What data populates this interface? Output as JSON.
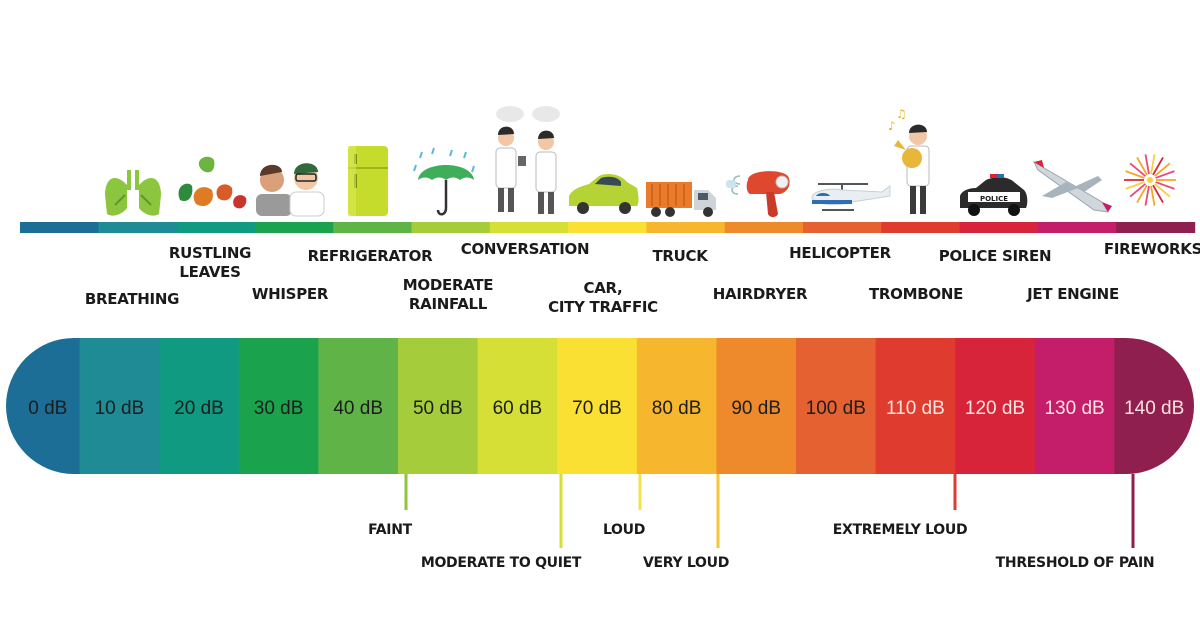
{
  "scale": {
    "unit": "dB",
    "segments": [
      {
        "value": 0,
        "label": "0 dB",
        "color": "#1c6e96",
        "text_color": "#1d1d1d"
      },
      {
        "value": 10,
        "label": "10 dB",
        "color": "#1f8b95",
        "text_color": "#1d1d1d"
      },
      {
        "value": 20,
        "label": "20 dB",
        "color": "#109a82",
        "text_color": "#1d1d1d"
      },
      {
        "value": 30,
        "label": "30 dB",
        "color": "#1ba24c",
        "text_color": "#1d1d1d"
      },
      {
        "value": 40,
        "label": "40 dB",
        "color": "#60b447",
        "text_color": "#1d1d1d"
      },
      {
        "value": 50,
        "label": "50 dB",
        "color": "#a5cd3b",
        "text_color": "#1d1d1d"
      },
      {
        "value": 60,
        "label": "60 dB",
        "color": "#d5df35",
        "text_color": "#1d1d1d"
      },
      {
        "value": 70,
        "label": "70 dB",
        "color": "#fbe034",
        "text_color": "#1d1d1d"
      },
      {
        "value": 80,
        "label": "80 dB",
        "color": "#f6b72e",
        "text_color": "#1d1d1d"
      },
      {
        "value": 90,
        "label": "90 dB",
        "color": "#ee8a2c",
        "text_color": "#1d1d1d"
      },
      {
        "value": 100,
        "label": "100 dB",
        "color": "#e56132",
        "text_color": "#1d1d1d"
      },
      {
        "value": 110,
        "label": "110 dB",
        "color": "#e03b2f",
        "text_color": "#fbe3df"
      },
      {
        "value": 120,
        "label": "120 dB",
        "color": "#d8243a",
        "text_color": "#fbe3df"
      },
      {
        "value": 130,
        "label": "130 dB",
        "color": "#c41d6a",
        "text_color": "#fbe3df"
      },
      {
        "value": 140,
        "label": "140 dB",
        "color": "#8f1f4e",
        "text_color": "#fbe3df"
      }
    ]
  },
  "sound_sources": [
    {
      "label": "BREATHING",
      "icon": "lungs-icon"
    },
    {
      "label": "RUSTLING\nLEAVES",
      "icon": "leaves-icon"
    },
    {
      "label": "WHISPER",
      "icon": "whisper-icon"
    },
    {
      "label": "REFRIGERATOR",
      "icon": "refrigerator-icon"
    },
    {
      "label": "MODERATE\nRAINFALL",
      "icon": "umbrella-rain-icon"
    },
    {
      "label": "CONVERSATION",
      "icon": "conversation-icon"
    },
    {
      "label": "CAR,\nCITY TRAFFIC",
      "icon": "car-icon"
    },
    {
      "label": "TRUCK",
      "icon": "truck-icon"
    },
    {
      "label": "HAIRDRYER",
      "icon": "hairdryer-icon"
    },
    {
      "label": "HELICOPTER",
      "icon": "helicopter-icon"
    },
    {
      "label": "TROMBONE",
      "icon": "trombone-player-icon"
    },
    {
      "label": "POLICE SIREN",
      "icon": "police-car-icon",
      "badge": "POLICE"
    },
    {
      "label": "JET ENGINE",
      "icon": "jet-icon"
    },
    {
      "label": "FIREWORKS",
      "icon": "fireworks-icon"
    }
  ],
  "levels": [
    {
      "label": "FAINT",
      "color": "#8cc63f"
    },
    {
      "label": "MODERATE TO QUIET",
      "color": "#d5df35"
    },
    {
      "label": "LOUD",
      "color": "#f4e04d"
    },
    {
      "label": "VERY LOUD",
      "color": "#f6c63a"
    },
    {
      "label": "EXTREMELY LOUD",
      "color": "#e03b2f"
    },
    {
      "label": "THRESHOLD OF PAIN",
      "color": "#8f1f4e"
    }
  ]
}
